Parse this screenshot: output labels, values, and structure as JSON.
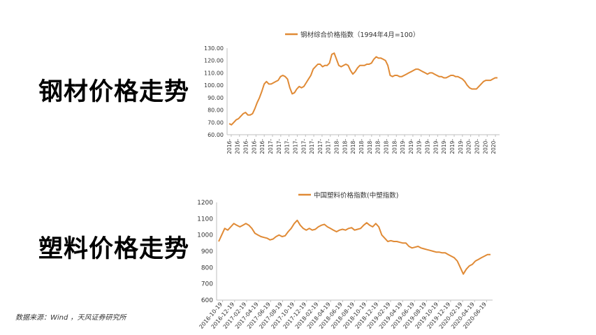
{
  "slide": {
    "steel_title": "钢材价格走势",
    "plastic_title": "塑料价格走势",
    "source": "数据来源：Wind ，天风证券研究所"
  },
  "chart_data": [
    {
      "id": "steel",
      "type": "line",
      "title": "",
      "legend": "钢材综合价格指数（1994年4月=100）",
      "legend_position": "top-center",
      "xlabel": "",
      "ylabel": "",
      "ylim": [
        60,
        130
      ],
      "y_ticks": [
        "60.00",
        "70.00",
        "80.00",
        "90.00",
        "100.00",
        "110.00",
        "120.00",
        "130.00"
      ],
      "x_ticks": [
        "2016-",
        "2016-",
        "2016-",
        "2016-",
        "2016-",
        "2017-",
        "2017-",
        "2017-",
        "2017-",
        "2017-",
        "2017-",
        "2017-",
        "2017-",
        "2018-",
        "2018-",
        "2018-",
        "2018-",
        "2018-",
        "2018-",
        "2018-",
        "2018-",
        "2019-",
        "2019-",
        "2019-",
        "2019-",
        "2019-",
        "2019-",
        "2019-",
        "2019-",
        "2020-",
        "2020-",
        "2020-",
        "2020-"
      ],
      "color": "#E08A35",
      "grid": false,
      "values": [
        69,
        68,
        70,
        72,
        73,
        75,
        77,
        78,
        76,
        76,
        77,
        81,
        86,
        90,
        95,
        101,
        103,
        101,
        101,
        102,
        103,
        104,
        107,
        108,
        107,
        105,
        98,
        93,
        94,
        97,
        99,
        98,
        99,
        102,
        105,
        108,
        113,
        115,
        117,
        117,
        115,
        116,
        116,
        118,
        125,
        126,
        121,
        116,
        115,
        116,
        117,
        116,
        112,
        109,
        111,
        114,
        116,
        116,
        116,
        117,
        117,
        118,
        121,
        123,
        122,
        122,
        121,
        120,
        116,
        108,
        107,
        108,
        108,
        107,
        107,
        108,
        109,
        110,
        111,
        112,
        113,
        113,
        112,
        111,
        110,
        109,
        110,
        110,
        109,
        108,
        107,
        107,
        106,
        106,
        107,
        108,
        108,
        107,
        107,
        106,
        105,
        103,
        100,
        98,
        97,
        97,
        97,
        99,
        101,
        103,
        104,
        104,
        104,
        105,
        106,
        106
      ]
    },
    {
      "id": "plastic",
      "type": "line",
      "title": "",
      "legend": "中国塑料价格指数(中塑指数)",
      "legend_position": "top-center",
      "xlabel": "",
      "ylabel": "",
      "ylim": [
        600,
        1200
      ],
      "y_ticks": [
        "600",
        "700",
        "800",
        "900",
        "1000",
        "1100",
        "1200"
      ],
      "x_ticks": [
        "2016-10-19",
        "2016-12-19",
        "2017-02-19",
        "2017-04-19",
        "2017-06-19",
        "2017-08-19",
        "2017-10-19",
        "2017-12-19",
        "2018-02-19",
        "2018-04-19",
        "2018-06-19",
        "2018-08-19",
        "2018-10-19",
        "2018-12-19",
        "2019-02-19",
        "2019-04-19",
        "2019-06-19",
        "2019-08-19",
        "2019-10-19",
        "2019-12-19",
        "2020-02-19",
        "2020-04-19",
        "2020-06-19"
      ],
      "color": "#E08A35",
      "grid": false,
      "values": [
        960,
        1000,
        1040,
        1030,
        1050,
        1070,
        1060,
        1050,
        1060,
        1070,
        1060,
        1040,
        1010,
        1000,
        990,
        985,
        980,
        970,
        975,
        990,
        1000,
        990,
        995,
        1020,
        1040,
        1070,
        1090,
        1060,
        1040,
        1030,
        1040,
        1030,
        1035,
        1050,
        1060,
        1065,
        1050,
        1040,
        1030,
        1020,
        1030,
        1035,
        1030,
        1040,
        1045,
        1030,
        1035,
        1040,
        1060,
        1075,
        1060,
        1050,
        1070,
        1050,
        1000,
        980,
        960,
        965,
        960,
        960,
        955,
        950,
        950,
        930,
        920,
        925,
        930,
        920,
        915,
        910,
        905,
        900,
        895,
        895,
        890,
        890,
        880,
        870,
        860,
        840,
        800,
        760,
        790,
        810,
        820,
        840,
        850,
        860,
        870,
        880,
        880
      ]
    }
  ]
}
